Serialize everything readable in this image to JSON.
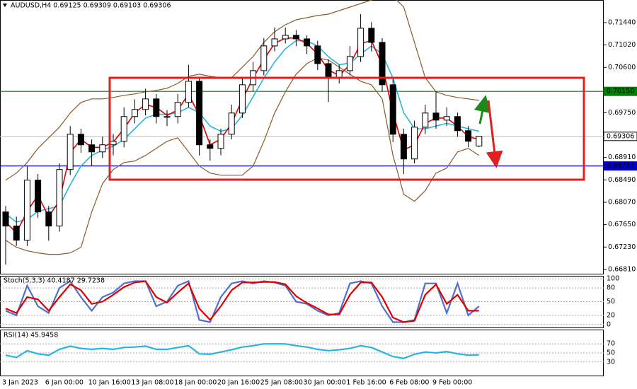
{
  "chart_data": [
    {
      "type": "candlestick",
      "title": "AUDUSD,H4  0.69125 0.69309 0.69103 0.69306",
      "categories": [
        "3 Jan 2023",
        null,
        null,
        null,
        "6 Jan 00:00",
        null,
        null,
        null,
        "10 Jan 16:00",
        null,
        null,
        null,
        "13 Jan 08:00",
        null,
        null,
        null,
        "18 Jan 00:00",
        null,
        null,
        null,
        "20 Jan 16:00",
        null,
        null,
        null,
        "25 Jan 08:00",
        null,
        null,
        null,
        "30 Jan 00:00",
        null,
        null,
        null,
        "1 Feb 16:00",
        null,
        null,
        null,
        "6 Feb 08:00",
        null,
        null,
        null,
        "9 Feb 00:00",
        null,
        null,
        null,
        null
      ],
      "open": [
        0.6789,
        0.67624,
        0.67359,
        0.68485,
        0.67889,
        0.67624,
        0.68684,
        0.69346,
        0.69148,
        0.69015,
        0.69148,
        0.69214,
        0.69678,
        0.6981,
        0.70009,
        0.69678,
        0.69678,
        0.69943,
        0.7034,
        0.69148,
        0.69081,
        0.69346,
        0.69744,
        0.70274,
        0.70539,
        0.71003,
        0.71135,
        0.71201,
        0.71135,
        0.71003,
        0.70671,
        0.70406,
        0.70539,
        0.70804,
        0.71334,
        0.71069,
        0.70274,
        0.69346,
        0.68883,
        0.69479,
        0.69744,
        0.69611,
        0.69678,
        0.69413,
        0.69125
      ],
      "high": [
        0.68,
        0.678,
        0.6875,
        0.686,
        0.68,
        0.688,
        0.695,
        0.6945,
        0.6925,
        0.693,
        0.6935,
        0.6985,
        0.7,
        0.702,
        0.701,
        0.698,
        0.701,
        0.7065,
        0.704,
        0.6925,
        0.6945,
        0.699,
        0.704,
        0.707,
        0.7115,
        0.7135,
        0.7135,
        0.713,
        0.712,
        0.711,
        0.7075,
        0.7065,
        0.71,
        0.716,
        0.7145,
        0.7115,
        0.704,
        0.6945,
        0.696,
        0.699,
        0.7015,
        0.6985,
        0.6975,
        0.695,
        0.69309
      ],
      "low": [
        0.669,
        0.6725,
        0.6725,
        0.6778,
        0.6735,
        0.6752,
        0.6858,
        0.69,
        0.6875,
        0.689,
        0.6895,
        0.691,
        0.6955,
        0.697,
        0.6955,
        0.695,
        0.6955,
        0.6985,
        0.6895,
        0.6885,
        0.6895,
        0.6925,
        0.6965,
        0.7015,
        0.7045,
        0.709,
        0.7105,
        0.71,
        0.7085,
        0.7055,
        0.6995,
        0.703,
        0.7045,
        0.707,
        0.709,
        0.7015,
        0.692,
        0.686,
        0.688,
        0.6935,
        0.6945,
        0.695,
        0.693,
        0.69103,
        0.69103
      ],
      "close": [
        0.67624,
        0.67359,
        0.68485,
        0.67889,
        0.67624,
        0.68684,
        0.69346,
        0.69148,
        0.69015,
        0.69148,
        0.69214,
        0.69678,
        0.6981,
        0.70009,
        0.69678,
        0.69678,
        0.69943,
        0.7034,
        0.69148,
        0.69081,
        0.69346,
        0.69744,
        0.70274,
        0.70539,
        0.71003,
        0.71135,
        0.71201,
        0.71135,
        0.71003,
        0.70671,
        0.70406,
        0.70539,
        0.70804,
        0.71334,
        0.71069,
        0.70274,
        0.69346,
        0.68883,
        0.69479,
        0.69744,
        0.69611,
        0.69678,
        0.69413,
        0.69214,
        0.69306
      ],
      "overlays": [
        {
          "color": "#8b5a2b",
          "values": [
            0.68485,
            0.68618,
            0.68816,
            0.69081,
            0.6928,
            0.69479,
            0.69744,
            0.69943,
            0.70009,
            0.70009,
            0.70036,
            0.70076,
            0.70102,
            0.70142,
            0.70168,
            0.70208,
            0.703,
            0.70433,
            0.70473,
            0.70433,
            0.70406,
            0.70406,
            0.70605,
            0.70804,
            0.71069,
            0.71268,
            0.714,
            0.71493,
            0.71533,
            0.71573,
            0.71599,
            0.71665,
            0.71732,
            0.71798,
            0.71864,
            0.7193,
            0.7193,
            0.71732,
            0.71069,
            0.70406,
            0.70142,
            0.70076,
            0.70036,
            0.70009,
            0.69982
          ]
        },
        {
          "color": "#8b5a2b",
          "values": [
            0.67359,
            0.67226,
            0.6716,
            0.6712,
            0.67094,
            0.67094,
            0.6712,
            0.67226,
            0.67889,
            0.68419,
            0.68684,
            0.68816,
            0.68843,
            0.68949,
            0.69081,
            0.69214,
            0.6928,
            0.69015,
            0.6875,
            0.68618,
            0.68578,
            0.68578,
            0.68578,
            0.6875,
            0.69214,
            0.69744,
            0.70142,
            0.70473,
            0.70672,
            0.70778,
            0.70738,
            0.70605,
            0.70473,
            0.7034,
            0.70274,
            0.70009,
            0.68949,
            0.6822,
            0.68088,
            0.68287,
            0.68618,
            0.68711,
            0.69015,
            0.69081,
            0.68949
          ]
        },
        {
          "color": "#28b4e0",
          "values": [
            0.6785,
            0.677,
            0.6775,
            0.679,
            0.6795,
            0.68,
            0.684,
            0.6875,
            0.6895,
            0.6905,
            0.6912,
            0.6925,
            0.6945,
            0.6965,
            0.6972,
            0.6972,
            0.6975,
            0.6985,
            0.6975,
            0.695,
            0.694,
            0.6945,
            0.697,
            0.7005,
            0.704,
            0.707,
            0.7095,
            0.711,
            0.711,
            0.71,
            0.708,
            0.7065,
            0.7068,
            0.7085,
            0.71,
            0.7085,
            0.704,
            0.6975,
            0.6945,
            0.6945,
            0.695,
            0.6955,
            0.695,
            0.6945,
            0.694
          ]
        },
        {
          "color": "#e00000",
          "values": [
            0.677,
            0.675,
            0.679,
            0.682,
            0.678,
            0.681,
            0.69,
            0.6925,
            0.691,
            0.691,
            0.692,
            0.6945,
            0.6975,
            0.699,
            0.6985,
            0.697,
            0.698,
            0.701,
            0.697,
            0.6915,
            0.6925,
            0.6955,
            0.7,
            0.704,
            0.7075,
            0.7105,
            0.7115,
            0.7115,
            0.7105,
            0.7085,
            0.7055,
            0.7045,
            0.7065,
            0.7105,
            0.711,
            0.7065,
            0.6975,
            0.6905,
            0.6915,
            0.6955,
            0.6965,
            0.6965,
            0.695,
            0.693,
            0.6925
          ]
        }
      ],
      "levels": [
        {
          "value": 0.7015,
          "label": "0.70150",
          "color": "#008000"
        },
        {
          "value": 0.69306,
          "label": "0.69306",
          "color": "#c0c0c0"
        },
        {
          "value": 0.68751,
          "label": "0.68751",
          "color": "#0000c8"
        }
      ],
      "ylim": [
        0.6673,
        0.71864
      ],
      "yticks": [
        {
          "value": 0.7144,
          "label": "0.71440"
        },
        {
          "value": 0.7102,
          "label": "0.71020"
        },
        {
          "value": 0.706,
          "label": "0.70600"
        },
        {
          "value": 0.6975,
          "label": "0.69750"
        },
        {
          "value": 0.6891,
          "label": "0.68910"
        },
        {
          "value": 0.6849,
          "label": "0.68490"
        },
        {
          "value": 0.6807,
          "label": "0.68070"
        },
        {
          "value": 0.6765,
          "label": "0.67650"
        },
        {
          "value": 0.6723,
          "label": "0.67230"
        },
        {
          "value": 0.6681,
          "label": "0.66810"
        }
      ]
    },
    {
      "type": "line",
      "title": "Stoch(5,3,3) 40.4187 29.7238",
      "ylim": [
        -5,
        105
      ],
      "yticks": [
        100,
        80,
        50,
        20,
        0
      ],
      "series": [
        {
          "color": "#5070d0",
          "values": [
            30,
            20,
            85,
            40,
            25,
            80,
            95,
            60,
            30,
            60,
            70,
            90,
            95,
            95,
            40,
            50,
            85,
            95,
            10,
            5,
            60,
            90,
            95,
            90,
            95,
            92,
            85,
            50,
            45,
            30,
            20,
            25,
            90,
            95,
            90,
            40,
            5,
            5,
            10,
            90,
            90,
            25,
            90,
            20,
            40
          ]
        },
        {
          "color": "#e00000",
          "values": [
            35,
            25,
            60,
            55,
            30,
            60,
            88,
            75,
            45,
            50,
            65,
            82,
            92,
            95,
            60,
            48,
            70,
            90,
            35,
            10,
            40,
            75,
            92,
            92,
            93,
            93,
            88,
            62,
            47,
            35,
            22,
            22,
            65,
            92,
            92,
            60,
            15,
            5,
            8,
            65,
            88,
            45,
            65,
            30,
            30
          ]
        }
      ]
    },
    {
      "type": "line",
      "title": "RSI(14) 45.9458",
      "ylim": [
        0,
        100
      ],
      "yticks": [
        70,
        50,
        30
      ],
      "series": [
        {
          "color": "#28b4e0",
          "values": [
            45,
            40,
            55,
            48,
            45,
            58,
            65,
            60,
            58,
            60,
            58,
            62,
            63,
            65,
            58,
            58,
            62,
            66,
            48,
            47,
            52,
            57,
            63,
            66,
            70,
            70,
            70,
            66,
            63,
            58,
            55,
            57,
            60,
            66,
            62,
            52,
            42,
            38,
            47,
            52,
            50,
            53,
            48,
            45,
            46
          ]
        }
      ]
    }
  ]
}
